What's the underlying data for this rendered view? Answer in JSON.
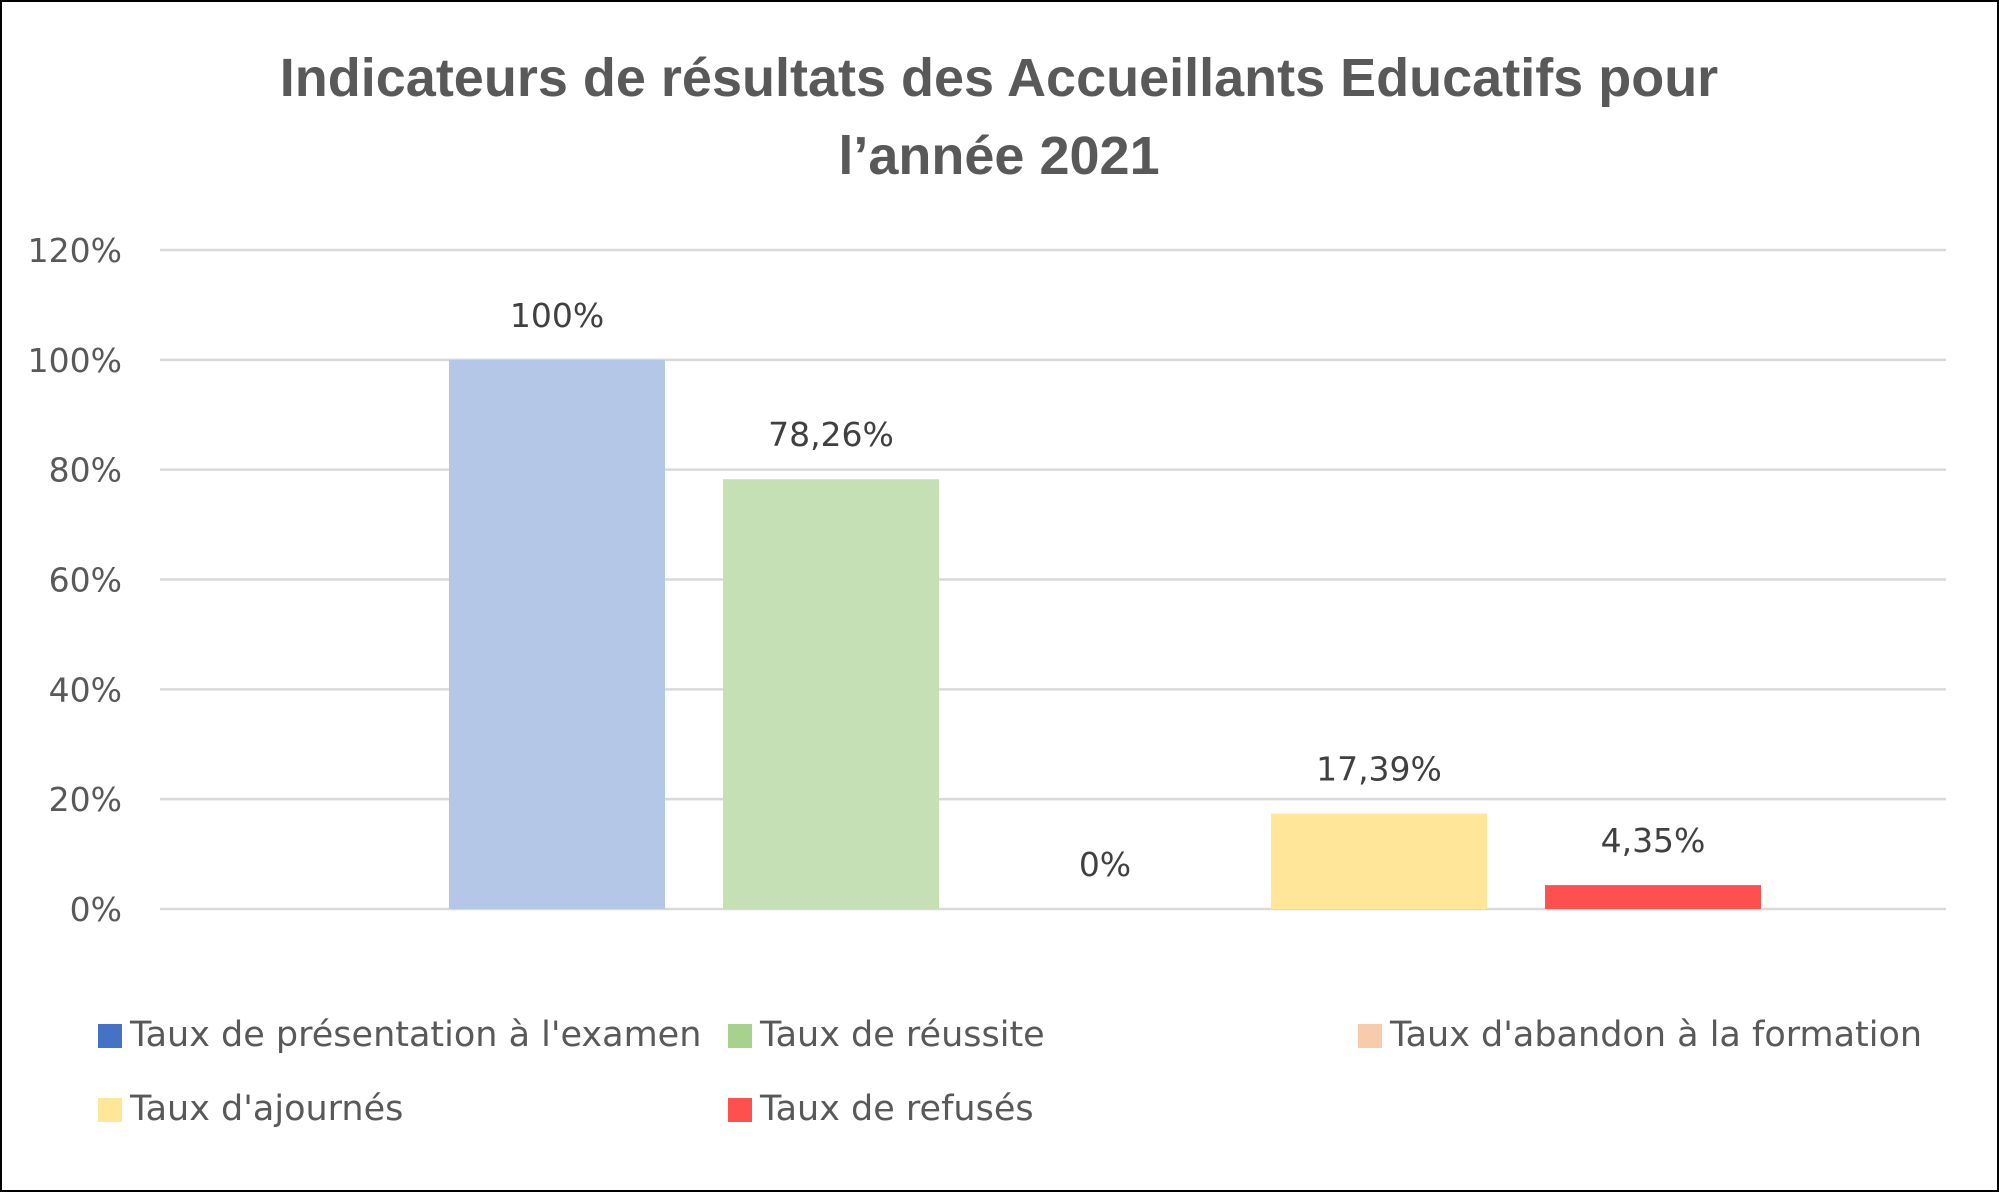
{
  "chart_data": {
    "type": "bar",
    "title": "Indicateurs de résultats des Accueillants Educatifs pour l’année 2021",
    "title_lines": [
      "Indicateurs de résultats des Accueillants Educatifs pour",
      "l’année 2021"
    ],
    "xlabel": "",
    "ylabel": "",
    "ylim": [
      0,
      120
    ],
    "yticks": [
      0,
      20,
      40,
      60,
      80,
      100,
      120
    ],
    "ytick_labels": [
      "0%",
      "20%",
      "40%",
      "60%",
      "80%",
      "100%",
      "120%"
    ],
    "grid": true,
    "legend_position": "bottom",
    "series": [
      {
        "name": "Taux de présentation à l'examen",
        "value": 100,
        "label": "100%",
        "color": "#b4c7e7",
        "legend_color": "#4472c4"
      },
      {
        "name": "Taux de réussite",
        "value": 78.26,
        "label": "78,26%",
        "color": "#c5e0b4",
        "legend_color": "#a9d18e"
      },
      {
        "name": "Taux d'abandon à la formation",
        "value": 0,
        "label": "0%",
        "color": "#f8cbad",
        "legend_color": "#f8cbad"
      },
      {
        "name": "Taux d'ajournés",
        "value": 17.39,
        "label": "17,39%",
        "color": "#ffe699",
        "legend_color": "#ffe699"
      },
      {
        "name": "Taux de refusés",
        "value": 4.35,
        "label": "4,35%",
        "color": "#ff5050",
        "legend_color": "#ff5050"
      }
    ]
  }
}
